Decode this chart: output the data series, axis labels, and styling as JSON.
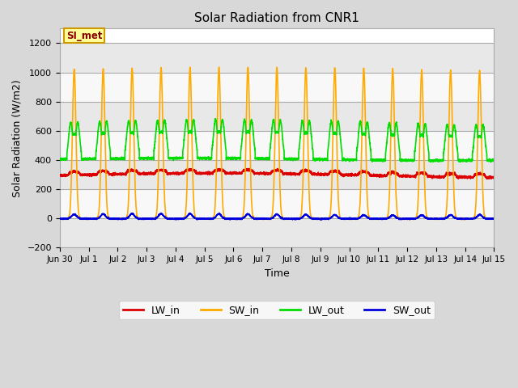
{
  "title": "Solar Radiation from CNR1",
  "xlabel": "Time",
  "ylabel": "Solar Radiation (W/m2)",
  "ylim": [
    -200,
    1300
  ],
  "yticks": [
    -200,
    0,
    200,
    400,
    600,
    800,
    1000,
    1200
  ],
  "fig_bg_color": "#d8d8d8",
  "plot_bg_color": "#ffffff",
  "grid_color": "#cccccc",
  "annotation_text": "SI_met",
  "annotation_bg": "#ffff99",
  "annotation_border": "#cc9900",
  "annotation_text_color": "#880000",
  "series": {
    "LW_in": {
      "color": "#dd0000",
      "lw": 1.2
    },
    "SW_in": {
      "color": "#ffaa00",
      "lw": 1.2
    },
    "LW_out": {
      "color": "#00dd00",
      "lw": 1.2
    },
    "SW_out": {
      "color": "#0000dd",
      "lw": 1.2
    }
  },
  "n_days": 15,
  "ppd": 288,
  "band_colors": [
    "#e8e8e8",
    "#f8f8f8"
  ]
}
